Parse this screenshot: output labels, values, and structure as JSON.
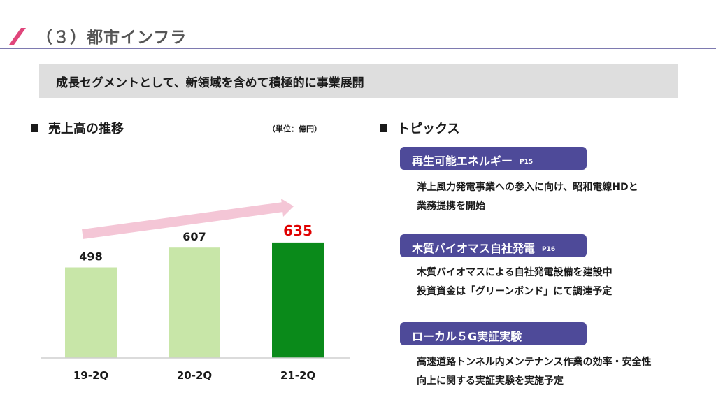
{
  "header": {
    "title": "（３）都市インフラ",
    "accent_color": "#e0457b"
  },
  "banner": {
    "text": "成長セグメントとして、新領域を含めて積極的に事業展開"
  },
  "left_section": {
    "heading": "売上高の推移",
    "unit_note": "（単位：億円）"
  },
  "chart_data": {
    "type": "bar",
    "categories": [
      "19-2Q",
      "20-2Q",
      "21-2Q"
    ],
    "values": [
      498,
      607,
      635
    ],
    "data_labels": [
      "498",
      "607",
      "635"
    ],
    "highlight_index": 2,
    "colors": {
      "bar": "#c8e6a8",
      "highlight_bar": "#0a8a1a",
      "highlight_label": "#e00000",
      "trend_arrow": "#f4c6d6"
    },
    "trend_arrow": true,
    "ylim": [
      0,
      700
    ],
    "grid": false
  },
  "right_section": {
    "heading": "トピックス",
    "topics": [
      {
        "title": "再生可能エネルギー",
        "ref": "P15",
        "lines": [
          "洋上風力発電事業への参入に向け、昭和電線HDと",
          "業務提携を開始"
        ]
      },
      {
        "title": "木質バイオマス自社発電",
        "ref": "P16",
        "lines": [
          "木質バイオマスによる自社発電設備を建設中",
          "投資資金は「グリーンボンド」にて調達予定"
        ]
      },
      {
        "title": "ローカル５G実証実験",
        "ref": "",
        "lines": [
          "高速道路トンネル内メンテナンス作業の効率・安全性",
          "向上に関する実証実験を実施予定"
        ]
      }
    ],
    "pill_color": "#4e4a99"
  }
}
